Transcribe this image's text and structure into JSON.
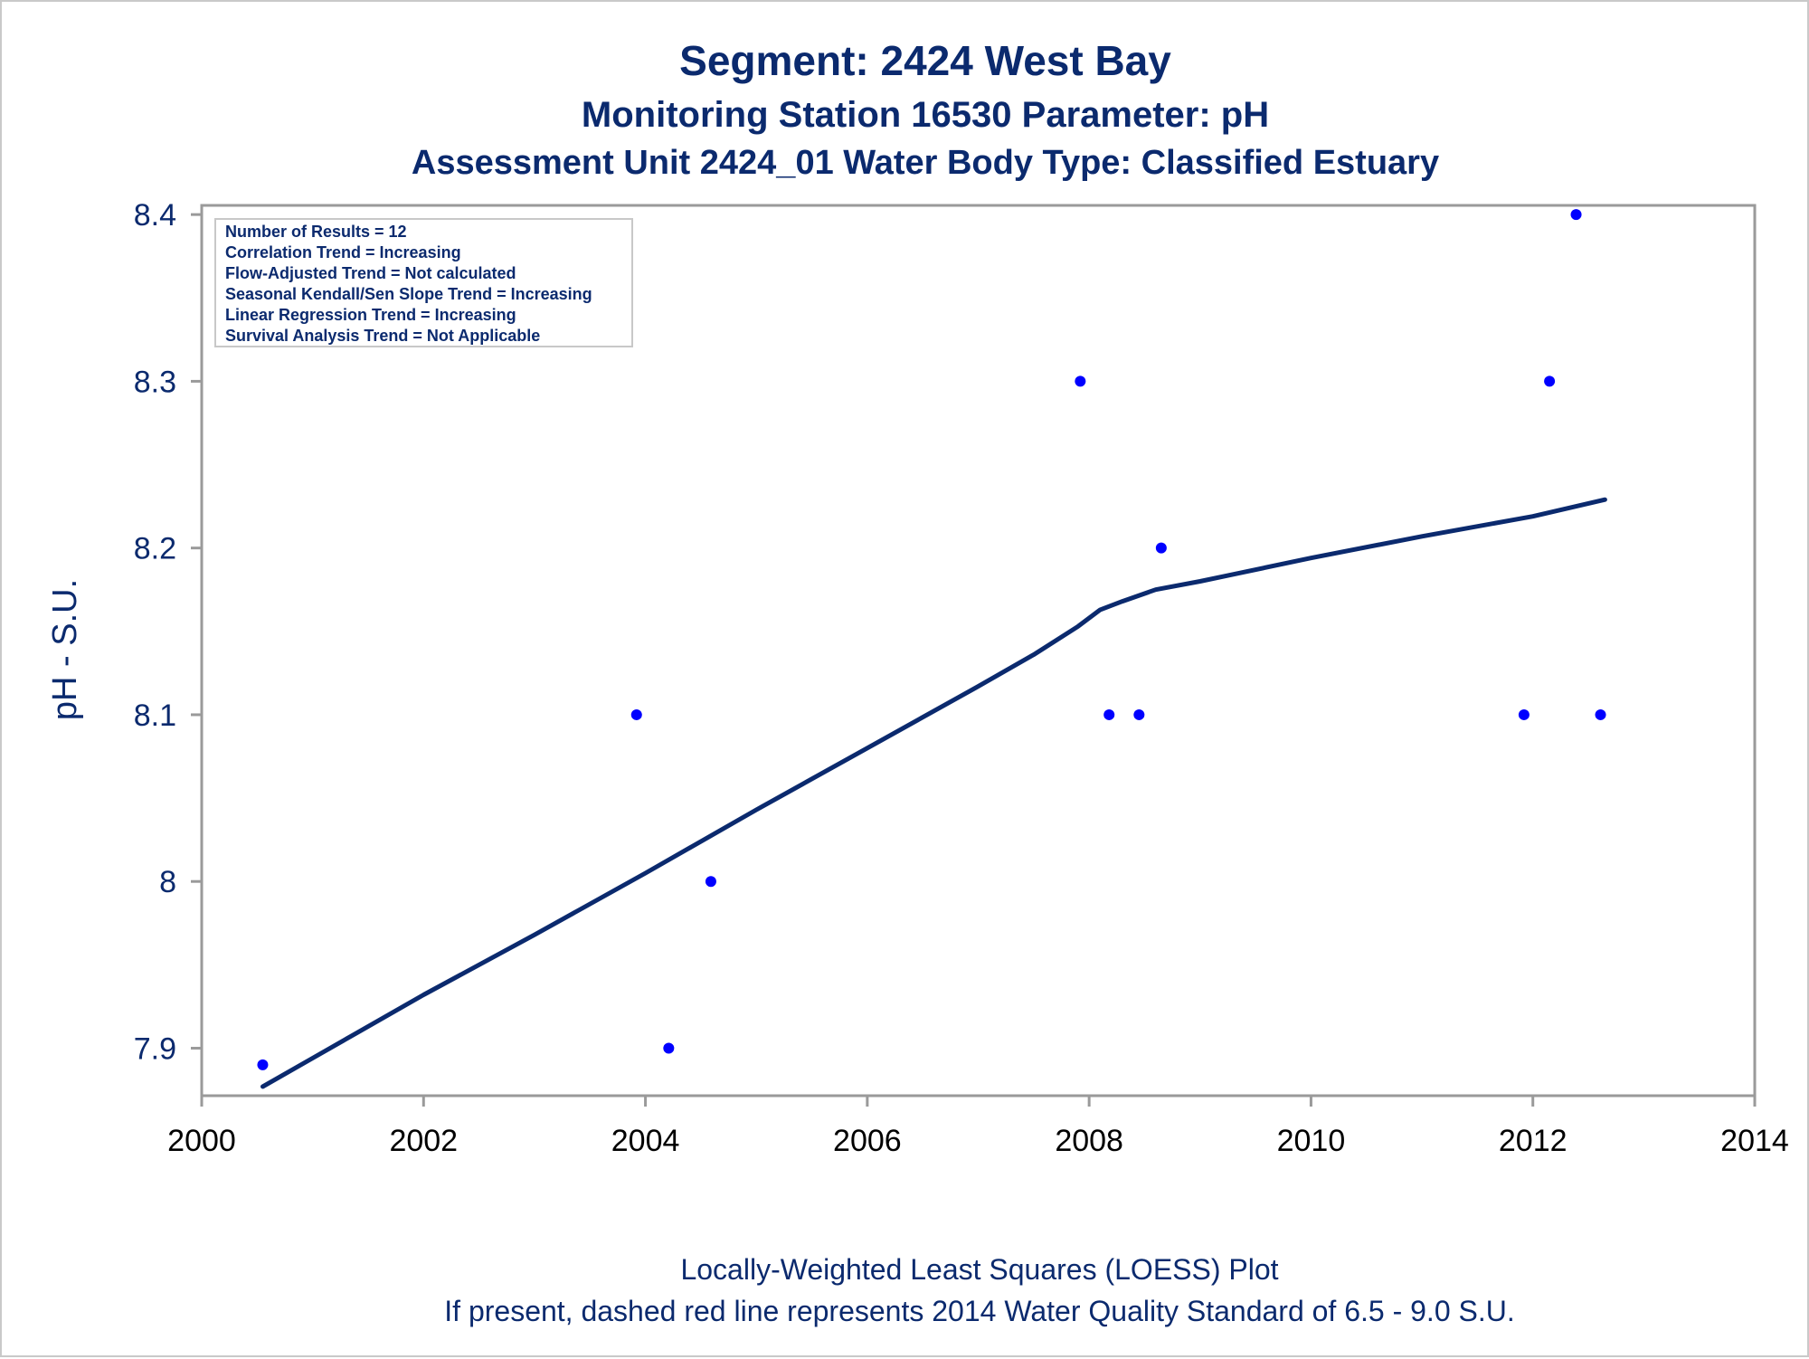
{
  "titles": {
    "line1": "Segment: 2424  West Bay",
    "line2": "Monitoring Station 16530 Parameter: pH",
    "line3": "Assessment Unit 2424_01   Water Body Type: Classified Estuary"
  },
  "stats_box": [
    "Number of Results = 12",
    "Correlation Trend = Increasing",
    "Flow-Adjusted Trend = Not calculated",
    "Seasonal Kendall/Sen Slope Trend = Increasing",
    "Linear Regression Trend = Increasing",
    "Survival Analysis Trend = Not Applicable"
  ],
  "footnotes": {
    "line1": "Locally-Weighted Least Squares (LOESS) Plot",
    "line2": "If present, dashed red line represents 2014 Water Quality Standard of 6.5 - 9.0 S.U."
  },
  "colors": {
    "text": "#0b2a6e",
    "points": "#0000ff",
    "loess": "#0b2a6e",
    "frame": "#9a9a9a"
  },
  "chart_data": {
    "type": "scatter",
    "title": "Segment: 2424  West Bay",
    "xlabel": "",
    "ylabel": "pH - S.U.",
    "xlim": [
      2000,
      2014
    ],
    "ylim": [
      7.8715,
      8.4055
    ],
    "x_ticks": [
      2000,
      2002,
      2004,
      2006,
      2008,
      2010,
      2012,
      2014
    ],
    "x_tick_labels": [
      "2000",
      "2002",
      "2004",
      "2006",
      "2008",
      "2010",
      "2012",
      "2014"
    ],
    "y_ticks": [
      7.9,
      8.0,
      8.1,
      8.2,
      8.3,
      8.4
    ],
    "y_tick_labels": [
      "7.9",
      "8",
      "8.1",
      "8.2",
      "8.3",
      "8.4"
    ],
    "grid": false,
    "points": [
      {
        "x": 2000.55,
        "y": 7.89
      },
      {
        "x": 2003.92,
        "y": 8.1
      },
      {
        "x": 2004.21,
        "y": 7.9
      },
      {
        "x": 2004.59,
        "y": 8.0
      },
      {
        "x": 2007.92,
        "y": 8.3
      },
      {
        "x": 2008.18,
        "y": 8.1
      },
      {
        "x": 2008.45,
        "y": 8.1
      },
      {
        "x": 2008.65,
        "y": 8.2
      },
      {
        "x": 2011.92,
        "y": 8.1
      },
      {
        "x": 2012.15,
        "y": 8.3
      },
      {
        "x": 2012.39,
        "y": 8.4
      },
      {
        "x": 2012.61,
        "y": 8.1
      }
    ],
    "loess": [
      {
        "x": 2000.55,
        "y": 7.877
      },
      {
        "x": 2001.0,
        "y": 7.894
      },
      {
        "x": 2002.0,
        "y": 7.932
      },
      {
        "x": 2003.0,
        "y": 7.968
      },
      {
        "x": 2004.0,
        "y": 8.005
      },
      {
        "x": 2005.0,
        "y": 8.043
      },
      {
        "x": 2006.0,
        "y": 8.08
      },
      {
        "x": 2007.0,
        "y": 8.117
      },
      {
        "x": 2007.5,
        "y": 8.136
      },
      {
        "x": 2007.9,
        "y": 8.153
      },
      {
        "x": 2008.1,
        "y": 8.163
      },
      {
        "x": 2008.3,
        "y": 8.168
      },
      {
        "x": 2008.6,
        "y": 8.175
      },
      {
        "x": 2009.0,
        "y": 8.18
      },
      {
        "x": 2010.0,
        "y": 8.194
      },
      {
        "x": 2011.0,
        "y": 8.207
      },
      {
        "x": 2012.0,
        "y": 8.219
      },
      {
        "x": 2012.65,
        "y": 8.229
      }
    ]
  }
}
